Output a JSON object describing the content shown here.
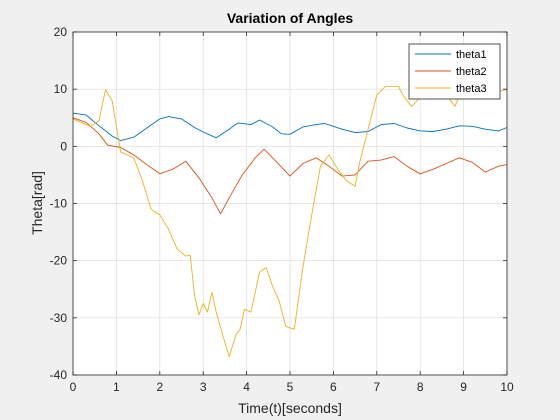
{
  "chart_data": {
    "type": "line",
    "title": "Variation of Angles",
    "xlabel": "Time(t)[seconds]",
    "ylabel": "Theta[rad]",
    "xlim": [
      0,
      10
    ],
    "ylim": [
      -40,
      20
    ],
    "xticks": [
      0,
      1,
      2,
      3,
      4,
      5,
      6,
      7,
      8,
      9,
      10
    ],
    "yticks": [
      -40,
      -30,
      -20,
      -10,
      0,
      10,
      20
    ],
    "grid": true,
    "legend_position": "top-right",
    "series": [
      {
        "name": "theta1",
        "color": "#0072BD",
        "points": [
          [
            0,
            5.8
          ],
          [
            0.3,
            5.5
          ],
          [
            0.6,
            3.6
          ],
          [
            0.9,
            1.8
          ],
          [
            1.1,
            1.0
          ],
          [
            1.4,
            1.6
          ],
          [
            1.7,
            3.2
          ],
          [
            2.0,
            4.8
          ],
          [
            2.2,
            5.2
          ],
          [
            2.5,
            4.8
          ],
          [
            2.8,
            3.3
          ],
          [
            3.0,
            2.5
          ],
          [
            3.3,
            1.5
          ],
          [
            3.6,
            3.0
          ],
          [
            3.8,
            4.1
          ],
          [
            4.1,
            3.8
          ],
          [
            4.3,
            4.6
          ],
          [
            4.6,
            3.4
          ],
          [
            4.8,
            2.2
          ],
          [
            5.0,
            2.1
          ],
          [
            5.3,
            3.4
          ],
          [
            5.6,
            3.8
          ],
          [
            5.8,
            4.0
          ],
          [
            6.2,
            3.0
          ],
          [
            6.5,
            2.4
          ],
          [
            6.8,
            2.6
          ],
          [
            7.1,
            3.8
          ],
          [
            7.4,
            4.0
          ],
          [
            7.7,
            3.2
          ],
          [
            8.0,
            2.7
          ],
          [
            8.3,
            2.6
          ],
          [
            8.6,
            3.0
          ],
          [
            8.9,
            3.6
          ],
          [
            9.2,
            3.5
          ],
          [
            9.5,
            3.0
          ],
          [
            9.8,
            2.7
          ],
          [
            10,
            3.3
          ]
        ]
      },
      {
        "name": "theta2",
        "color": "#D95319",
        "points": [
          [
            0,
            5.0
          ],
          [
            0.3,
            4.2
          ],
          [
            0.6,
            2.2
          ],
          [
            0.8,
            0.2
          ],
          [
            1.1,
            -0.2
          ],
          [
            1.4,
            -1.5
          ],
          [
            1.7,
            -3.2
          ],
          [
            2.0,
            -4.8
          ],
          [
            2.3,
            -4.0
          ],
          [
            2.6,
            -2.6
          ],
          [
            2.9,
            -5.5
          ],
          [
            3.2,
            -9.0
          ],
          [
            3.4,
            -11.8
          ],
          [
            3.6,
            -9.0
          ],
          [
            3.9,
            -5.0
          ],
          [
            4.2,
            -2.0
          ],
          [
            4.4,
            -0.5
          ],
          [
            4.7,
            -2.8
          ],
          [
            5.0,
            -5.2
          ],
          [
            5.3,
            -3.0
          ],
          [
            5.6,
            -2.0
          ],
          [
            5.9,
            -3.5
          ],
          [
            6.2,
            -5.2
          ],
          [
            6.5,
            -5.0
          ],
          [
            6.8,
            -2.6
          ],
          [
            7.1,
            -2.4
          ],
          [
            7.4,
            -1.8
          ],
          [
            7.7,
            -3.5
          ],
          [
            8.0,
            -4.8
          ],
          [
            8.3,
            -4.0
          ],
          [
            8.6,
            -3.0
          ],
          [
            8.9,
            -2.0
          ],
          [
            9.2,
            -2.8
          ],
          [
            9.5,
            -4.5
          ],
          [
            9.8,
            -3.5
          ],
          [
            10,
            -3.2
          ]
        ]
      },
      {
        "name": "theta3",
        "color": "#EDB120",
        "points": [
          [
            0,
            4.8
          ],
          [
            0.4,
            3.5
          ],
          [
            0.6,
            4.5
          ],
          [
            0.75,
            9.9
          ],
          [
            0.9,
            8.0
          ],
          [
            1.1,
            -1.0
          ],
          [
            1.4,
            -2.0
          ],
          [
            1.6,
            -6.0
          ],
          [
            1.8,
            -11.0
          ],
          [
            2.0,
            -12.0
          ],
          [
            2.2,
            -14.5
          ],
          [
            2.4,
            -18.0
          ],
          [
            2.6,
            -19.2
          ],
          [
            2.7,
            -19.0
          ],
          [
            2.8,
            -26.0
          ],
          [
            2.9,
            -29.5
          ],
          [
            3.0,
            -27.5
          ],
          [
            3.1,
            -29.0
          ],
          [
            3.2,
            -25.5
          ],
          [
            3.3,
            -29.0
          ],
          [
            3.45,
            -33.0
          ],
          [
            3.6,
            -36.8
          ],
          [
            3.75,
            -33.0
          ],
          [
            3.85,
            -32.0
          ],
          [
            3.95,
            -28.5
          ],
          [
            4.1,
            -29.0
          ],
          [
            4.3,
            -22.0
          ],
          [
            4.45,
            -21.2
          ],
          [
            4.6,
            -24.5
          ],
          [
            4.75,
            -27.0
          ],
          [
            4.9,
            -31.5
          ],
          [
            5.1,
            -32.0
          ],
          [
            5.3,
            -21.0
          ],
          [
            5.5,
            -12.0
          ],
          [
            5.7,
            -3.5
          ],
          [
            5.9,
            -1.5
          ],
          [
            6.1,
            -4.0
          ],
          [
            6.3,
            -6.0
          ],
          [
            6.5,
            -7.0
          ],
          [
            6.6,
            -3.0
          ],
          [
            6.8,
            3.0
          ],
          [
            7.0,
            9.0
          ],
          [
            7.2,
            10.5
          ],
          [
            7.5,
            10.5
          ],
          [
            7.6,
            9.0
          ],
          [
            7.8,
            7.0
          ],
          [
            8.0,
            8.5
          ],
          [
            8.2,
            11.2
          ],
          [
            8.5,
            10.0
          ],
          [
            8.8,
            7.0
          ],
          [
            9.1,
            12.0
          ],
          [
            9.4,
            8.5
          ],
          [
            9.6,
            9.8
          ],
          [
            9.8,
            9.5
          ],
          [
            10,
            10.0
          ]
        ]
      }
    ]
  }
}
